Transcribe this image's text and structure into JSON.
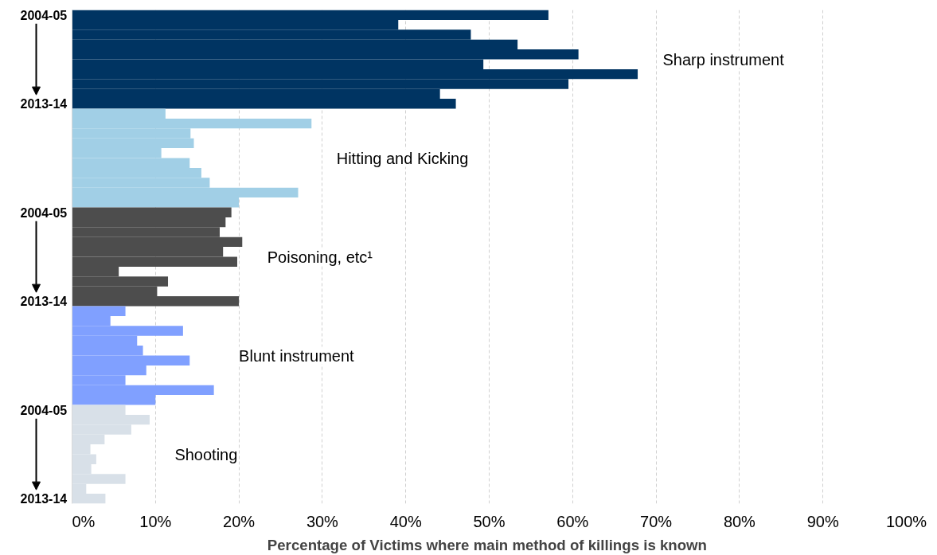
{
  "chart_data": {
    "type": "bar",
    "orientation": "horizontal",
    "xlabel": "Percentage  of Victims where main method of killings is known",
    "categories": [
      "2004-05",
      null,
      null,
      null,
      null,
      null,
      null,
      null,
      null,
      "2013-14",
      null,
      null,
      null,
      null,
      null,
      null,
      null,
      null,
      null,
      null,
      "2004-05",
      null,
      null,
      null,
      null,
      null,
      null,
      null,
      null,
      "2013-14",
      null,
      null,
      null,
      null,
      null,
      null,
      null,
      null,
      null,
      null,
      "2004-05",
      null,
      null,
      null,
      null,
      null,
      null,
      null,
      null,
      "2013-14"
    ],
    "series": [
      {
        "name": "Sharp instrument",
        "color": "#003462",
        "values": [
          57.1,
          39.1,
          47.8,
          53.4,
          60.7,
          49.3,
          67.8,
          59.5,
          44.1,
          46.0,
          null,
          null,
          null,
          null,
          null,
          null,
          null,
          null,
          null,
          null,
          null,
          null,
          null,
          null,
          null,
          null,
          null,
          null,
          null,
          null,
          null,
          null,
          null,
          null,
          null,
          null,
          null,
          null,
          null,
          null,
          null,
          null,
          null,
          null,
          null,
          null,
          null,
          null,
          null,
          null
        ]
      },
      {
        "name": "Hitting and Kicking",
        "color": "#a1cfe6",
        "values": [
          null,
          null,
          null,
          null,
          null,
          null,
          null,
          null,
          null,
          null,
          11.2,
          28.7,
          14.2,
          14.6,
          10.7,
          14.1,
          15.5,
          16.5,
          27.1,
          20.0,
          null,
          null,
          null,
          null,
          null,
          null,
          null,
          null,
          null,
          null,
          null,
          null,
          null,
          null,
          null,
          null,
          null,
          null,
          null,
          null,
          null,
          null,
          null,
          null,
          null,
          null,
          null,
          null,
          null,
          null
        ]
      },
      {
        "name": "Poisoning, etc¹",
        "color": "#4d4d4d",
        "values": [
          null,
          null,
          null,
          null,
          null,
          null,
          null,
          null,
          null,
          null,
          null,
          null,
          null,
          null,
          null,
          null,
          null,
          null,
          null,
          null,
          19.1,
          18.4,
          17.7,
          20.4,
          18.1,
          19.8,
          5.6,
          11.5,
          10.2,
          20.0,
          null,
          null,
          null,
          null,
          null,
          null,
          null,
          null,
          null,
          null,
          null,
          null,
          null,
          null,
          null,
          null,
          null,
          null,
          null,
          null
        ]
      },
      {
        "name": "Blunt instrument",
        "color": "#80a0ff",
        "values": [
          null,
          null,
          null,
          null,
          null,
          null,
          null,
          null,
          null,
          null,
          null,
          null,
          null,
          null,
          null,
          null,
          null,
          null,
          null,
          null,
          null,
          null,
          null,
          null,
          null,
          null,
          null,
          null,
          null,
          null,
          6.4,
          4.6,
          13.3,
          7.8,
          8.5,
          14.1,
          8.9,
          6.4,
          17.0,
          10.0,
          null,
          null,
          null,
          null,
          null,
          null,
          null,
          null,
          null,
          null
        ]
      },
      {
        "name": "Shooting",
        "color": "#d8e0e8",
        "values": [
          null,
          null,
          null,
          null,
          null,
          null,
          null,
          null,
          null,
          null,
          null,
          null,
          null,
          null,
          null,
          null,
          null,
          null,
          null,
          null,
          null,
          null,
          null,
          null,
          null,
          null,
          null,
          null,
          null,
          null,
          null,
          null,
          null,
          null,
          null,
          null,
          null,
          null,
          null,
          null,
          6.4,
          9.3,
          7.1,
          3.9,
          2.2,
          2.9,
          2.3,
          6.4,
          1.7,
          4.0
        ]
      }
    ],
    "xlim": [
      0,
      100
    ],
    "xticks": [
      {
        "value": 0,
        "label": "0%"
      },
      {
        "value": 10,
        "label": "10%"
      },
      {
        "value": 20,
        "label": "20%"
      },
      {
        "value": 30,
        "label": "30%"
      },
      {
        "value": 40,
        "label": "40%"
      },
      {
        "value": 50,
        "label": "50%"
      },
      {
        "value": 60,
        "label": "60%"
      },
      {
        "value": 70,
        "label": "70%"
      },
      {
        "value": 80,
        "label": "80%"
      },
      {
        "value": 90,
        "label": "90%"
      },
      {
        "value": 100,
        "label": "100%"
      }
    ],
    "grid": "x"
  }
}
